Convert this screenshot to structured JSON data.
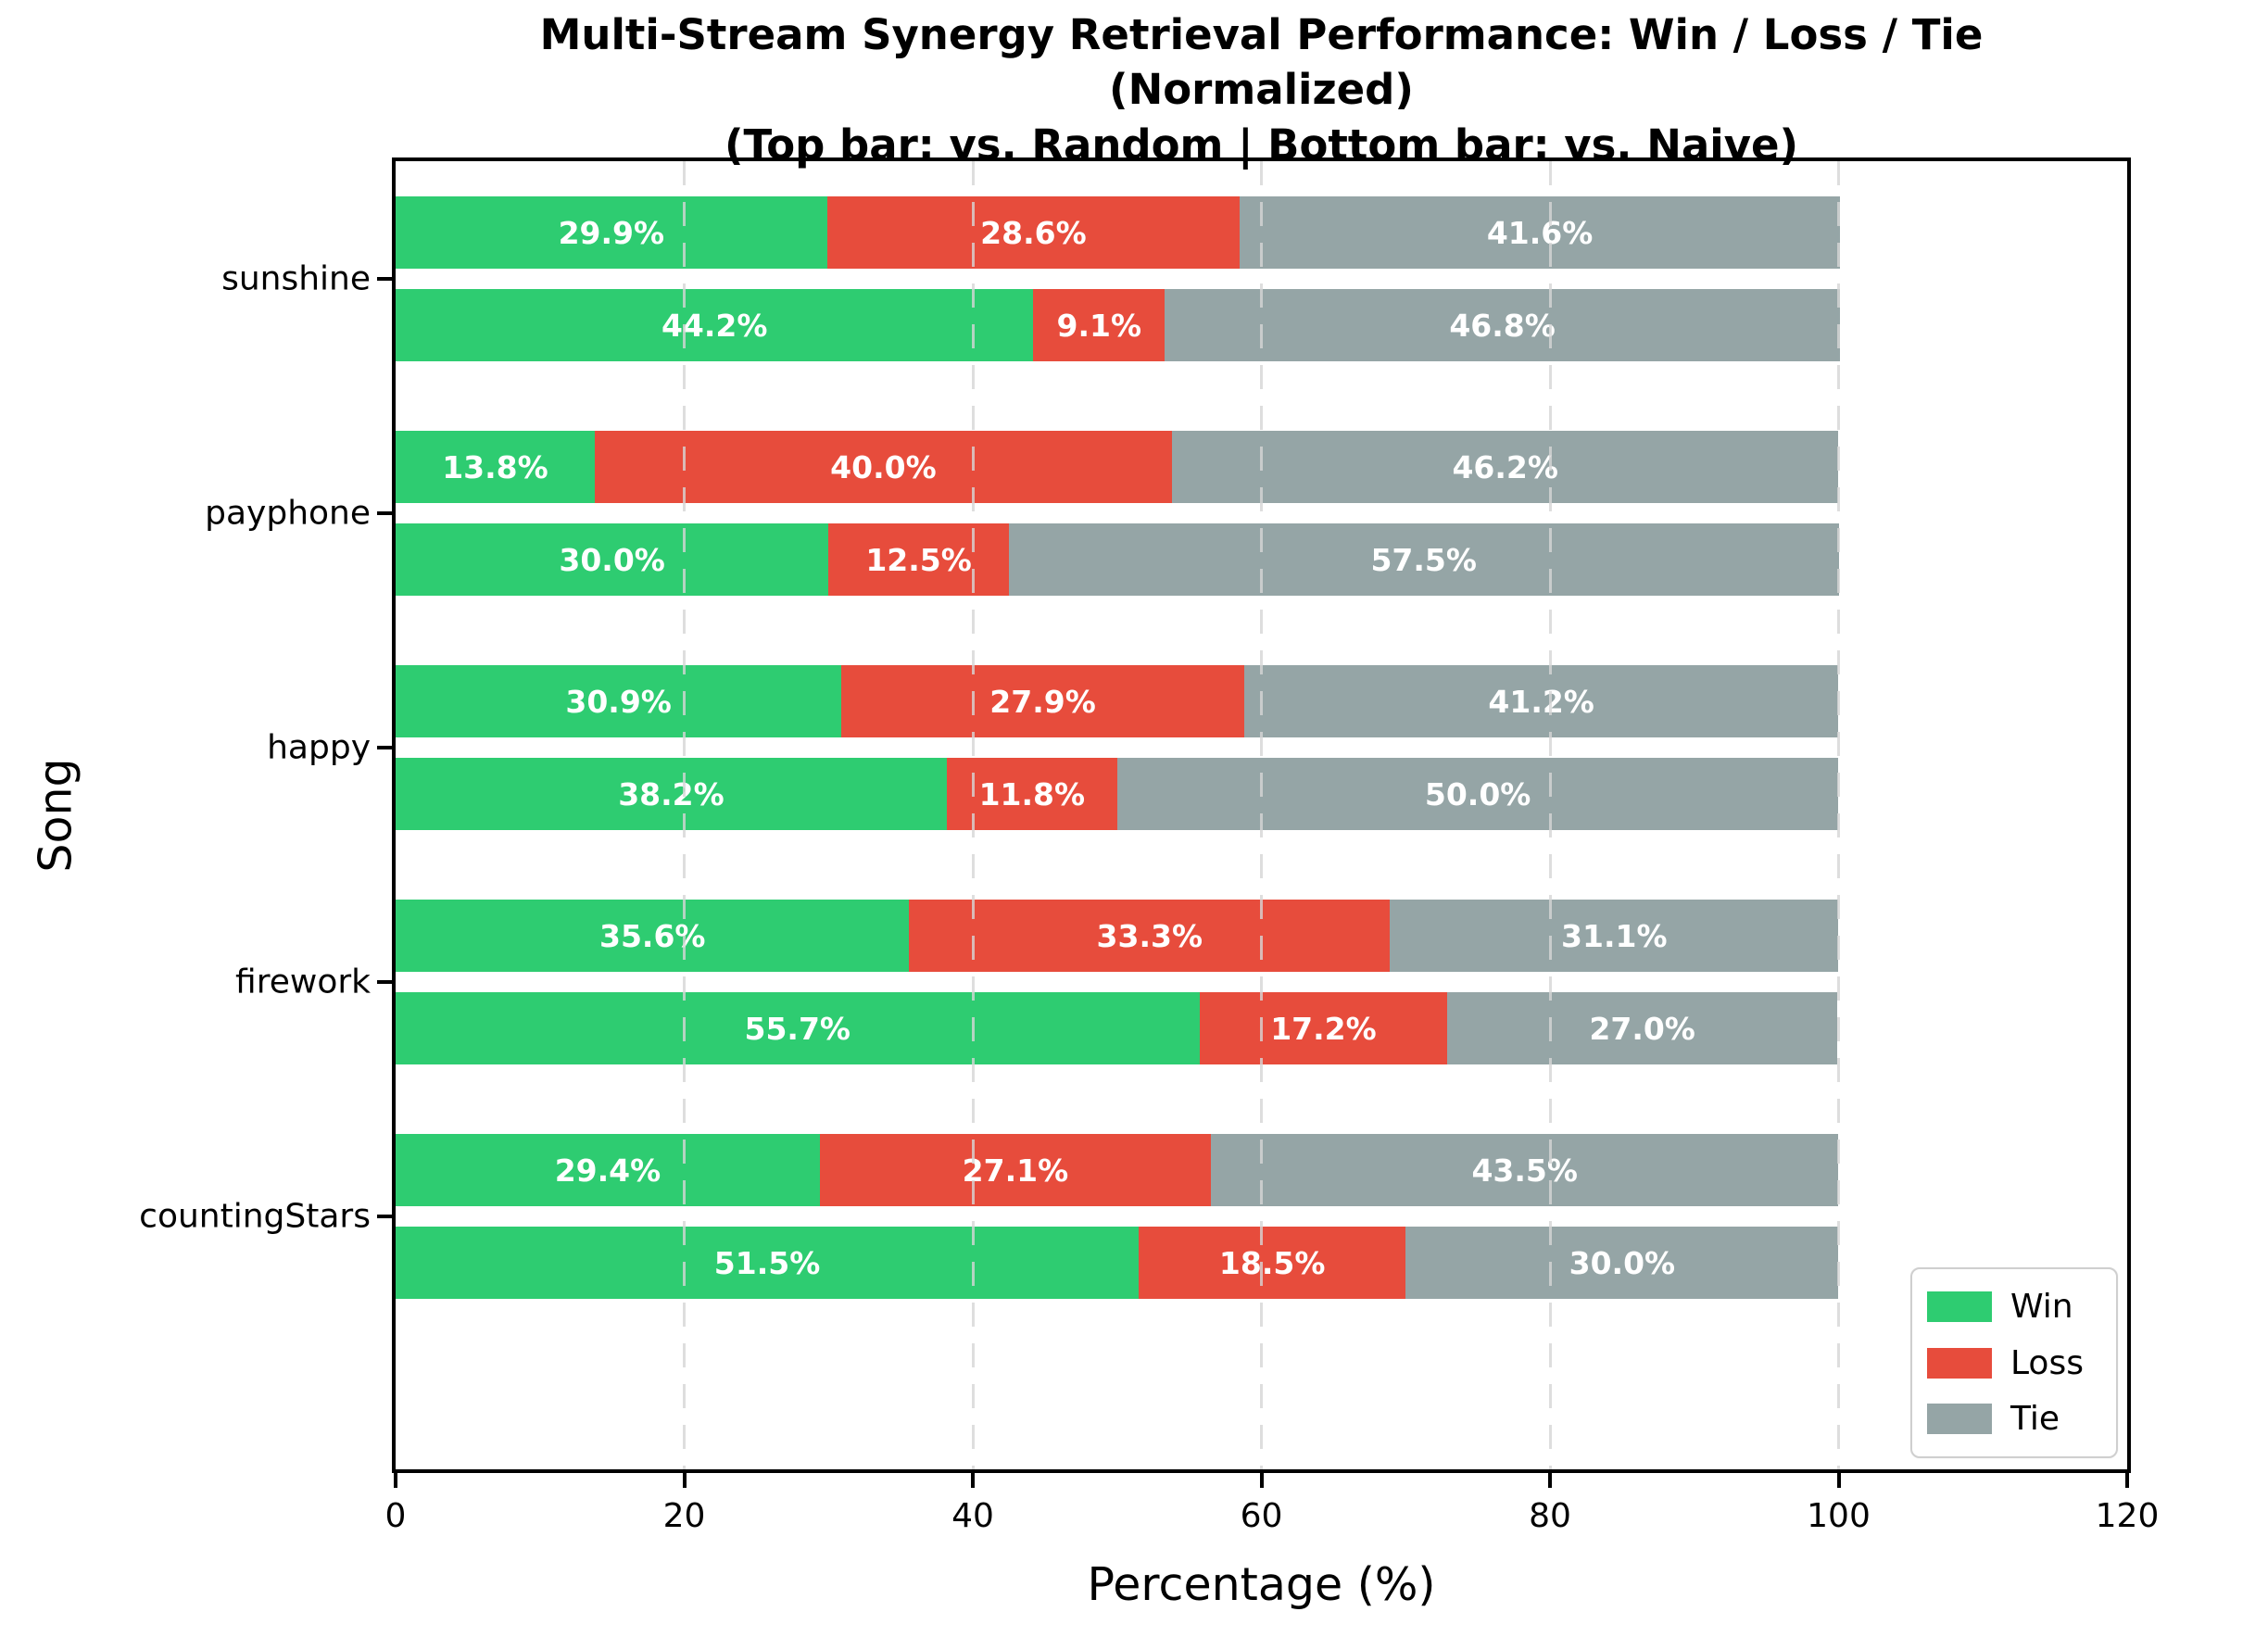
{
  "colors": {
    "win": "#2ecc71",
    "loss": "#e74c3c",
    "tie": "#95a5a6",
    "grid": "#d6d6d6",
    "spine": "#000000",
    "label_text": "#ffffff"
  },
  "chart_data": {
    "type": "bar",
    "orientation": "horizontal",
    "stacked": true,
    "title": "Multi-Stream Synergy Retrieval Performance: Win / Loss / Tie (Normalized)",
    "subtitle": "(Top bar: vs. Random | Bottom bar: vs. Naive)",
    "xlabel": "Percentage (%)",
    "ylabel": "Song",
    "xlim": [
      0,
      120
    ],
    "xticks": [
      0,
      20,
      40,
      60,
      80,
      100,
      120
    ],
    "grid": "vertical dashed, drawn over bars",
    "legend_position": "lower right",
    "legend": {
      "entries": [
        {
          "label": "Win",
          "key": "win",
          "color": "#2ecc71"
        },
        {
          "label": "Loss",
          "key": "loss",
          "color": "#e74c3c"
        },
        {
          "label": "Tie",
          "key": "tie",
          "color": "#95a5a6"
        }
      ]
    },
    "bars_per_category": [
      "vs. Random",
      "vs. Naive"
    ],
    "categories": [
      "sunshine",
      "payphone",
      "happy",
      "firework",
      "countingStars"
    ],
    "values": [
      {
        "song": "sunshine",
        "vs_random": {
          "win": 29.9,
          "loss": 28.6,
          "tie": 41.6
        },
        "vs_naive": {
          "win": 44.2,
          "loss": 9.1,
          "tie": 46.8
        }
      },
      {
        "song": "payphone",
        "vs_random": {
          "win": 13.8,
          "loss": 40.0,
          "tie": 46.2
        },
        "vs_naive": {
          "win": 30.0,
          "loss": 12.5,
          "tie": 57.5
        }
      },
      {
        "song": "happy",
        "vs_random": {
          "win": 30.9,
          "loss": 27.9,
          "tie": 41.2
        },
        "vs_naive": {
          "win": 38.2,
          "loss": 11.8,
          "tie": 50.0
        }
      },
      {
        "song": "firework",
        "vs_random": {
          "win": 35.6,
          "loss": 33.3,
          "tie": 31.1
        },
        "vs_naive": {
          "win": 55.7,
          "loss": 17.2,
          "tie": 27.0
        }
      },
      {
        "song": "countingStars",
        "vs_random": {
          "win": 29.4,
          "loss": 27.1,
          "tie": 43.5
        },
        "vs_naive": {
          "win": 51.5,
          "loss": 18.5,
          "tie": 30.0
        }
      }
    ]
  }
}
